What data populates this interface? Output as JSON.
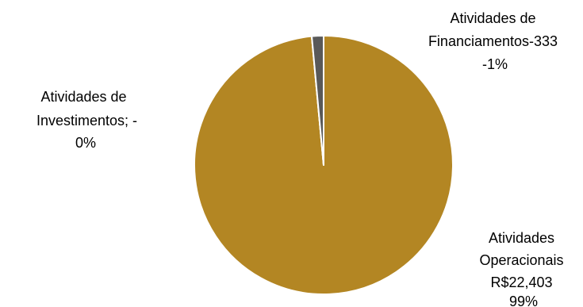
{
  "chart_data": {
    "type": "pie",
    "title": "",
    "slices": [
      {
        "category": "Atividades Operacionais",
        "value": 22403,
        "value_label": "R$22,403",
        "percent_label": "99%",
        "color": "#B38623"
      },
      {
        "category": "Atividades de Investimentos",
        "value": 0,
        "value_label": "-",
        "percent_label": "0%",
        "color": "#FFFFFF"
      },
      {
        "category": "Atividades de Financiamentos",
        "value": 333,
        "value_label": "-333",
        "percent_label": "-1%",
        "color": "#595959"
      }
    ],
    "label_text": {
      "operacionais": [
        "Atividades",
        "Operacionais",
        "R$22,403",
        "99%"
      ],
      "investimentos": [
        "Atividades de",
        "Investimentos;  -",
        "0%"
      ],
      "financiamentos": [
        "Atividades de",
        "Financiamentos-333",
        "-1%"
      ]
    },
    "legend": "none"
  }
}
